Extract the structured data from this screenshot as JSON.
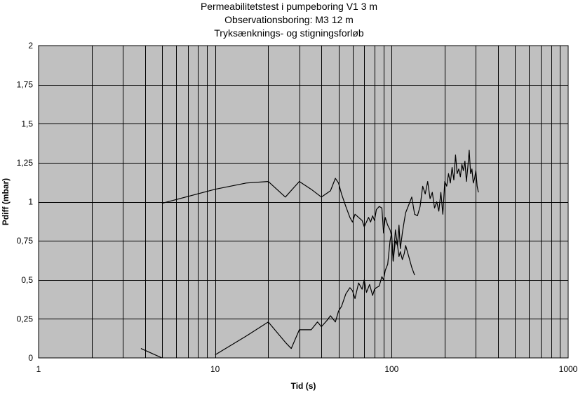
{
  "chart_data": {
    "type": "line",
    "title_lines": [
      "Permeabilitetstest i pumpeboring V1 3 m",
      "Observationsboring: M3 12 m",
      "Tryksænknings- og stigningsforløb"
    ],
    "xlabel": "Tid (s)",
    "ylabel": "Pdiff (mbar)",
    "x_scale": "log",
    "xlim": [
      1,
      1000
    ],
    "ylim": [
      0,
      2
    ],
    "x_ticks": [
      "1",
      "10",
      "100",
      "1000"
    ],
    "y_ticks": [
      "0",
      "0,25",
      "0,5",
      "0,75",
      "1",
      "1,25",
      "1,5",
      "1,75",
      "2"
    ],
    "grid": true,
    "plot_background": "#c0c0c0",
    "line_color": "#000000",
    "series": [
      {
        "x": [
          5,
          10,
          15,
          20,
          25,
          30,
          35,
          40,
          45,
          48,
          50,
          52,
          55,
          58,
          60,
          62,
          65,
          68,
          70,
          72,
          74,
          76,
          78,
          80,
          82,
          85,
          88,
          90,
          92,
          95,
          98,
          100,
          102,
          105,
          108,
          110,
          112,
          115,
          118,
          120,
          125,
          130,
          135
        ],
        "y": [
          0.99,
          1.08,
          1.12,
          1.13,
          1.03,
          1.13,
          1.08,
          1.03,
          1.07,
          1.15,
          1.12,
          1.05,
          0.97,
          0.9,
          0.87,
          0.92,
          0.9,
          0.88,
          0.84,
          0.87,
          0.9,
          0.87,
          0.91,
          0.88,
          0.95,
          0.97,
          0.96,
          0.8,
          0.9,
          0.85,
          0.82,
          0.78,
          0.62,
          0.82,
          0.72,
          0.65,
          0.68,
          0.63,
          0.67,
          0.72,
          0.65,
          0.58,
          0.53
        ]
      },
      {
        "x": [
          3.8,
          5
        ],
        "y": [
          0.06,
          0
        ]
      },
      {
        "x": [
          10,
          15,
          20,
          25,
          27,
          30,
          35,
          38,
          40,
          43,
          45,
          48,
          50,
          52,
          55,
          58,
          60,
          62,
          65,
          68,
          70,
          72,
          75,
          78,
          80,
          82,
          85,
          88,
          90,
          92,
          95,
          98,
          100,
          102,
          105,
          108,
          110,
          112,
          115,
          118,
          120,
          125,
          130,
          135,
          140,
          145,
          150,
          155,
          160,
          165,
          170,
          175,
          180,
          185,
          190,
          195,
          200,
          205,
          210,
          215,
          220,
          225,
          230,
          235,
          240,
          245,
          250,
          255,
          260,
          265,
          270,
          275,
          280,
          285,
          290,
          295,
          300,
          305,
          310
        ],
        "y": [
          0.02,
          0.14,
          0.23,
          0.1,
          0.06,
          0.18,
          0.18,
          0.23,
          0.2,
          0.24,
          0.27,
          0.23,
          0.3,
          0.33,
          0.41,
          0.45,
          0.43,
          0.38,
          0.48,
          0.44,
          0.5,
          0.42,
          0.47,
          0.4,
          0.44,
          0.45,
          0.46,
          0.52,
          0.5,
          0.56,
          0.6,
          0.75,
          0.8,
          0.62,
          0.75,
          0.72,
          0.85,
          0.7,
          0.8,
          0.88,
          0.93,
          0.98,
          1.03,
          0.92,
          0.91,
          0.97,
          1.1,
          1.05,
          1.13,
          1.02,
          1.06,
          0.96,
          1.0,
          0.94,
          1.06,
          0.92,
          1.13,
          1.1,
          1.18,
          1.12,
          1.22,
          1.14,
          1.3,
          1.18,
          1.21,
          1.16,
          1.24,
          1.2,
          1.26,
          1.13,
          1.22,
          1.33,
          1.18,
          1.21,
          1.12,
          1.15,
          1.2,
          1.1,
          1.06
        ]
      }
    ]
  }
}
